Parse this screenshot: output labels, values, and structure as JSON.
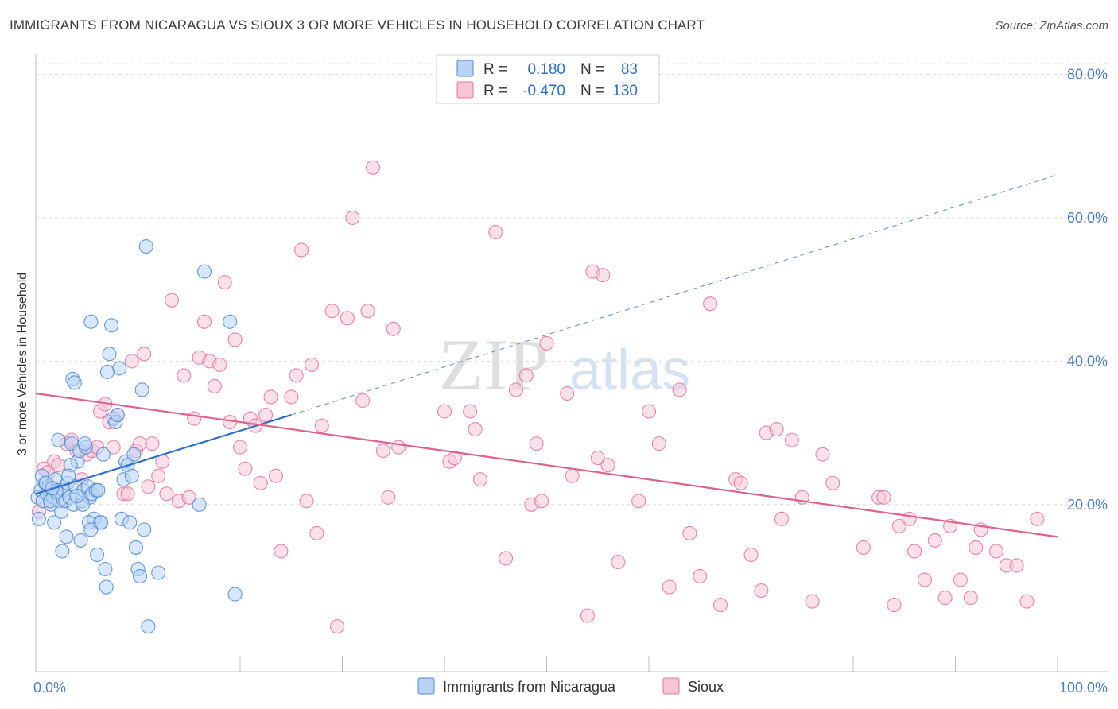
{
  "title": "IMMIGRANTS FROM NICARAGUA VS SIOUX 3 OR MORE VEHICLES IN HOUSEHOLD CORRELATION CHART",
  "source": "Source: ZipAtlas.com",
  "watermark": {
    "zip": "ZIP",
    "atlas": "atlas"
  },
  "colors": {
    "blue": "#4d8ad6",
    "blue_fill": "#b8d3f5",
    "blue_line": "#2f6fcc",
    "pink": "#e8709c",
    "pink_fill": "#f6c6d6",
    "pink_line": "#e0608e",
    "axis_text": "#4a7fcc",
    "grid": "#dcdcdc"
  },
  "legend_box": {
    "rows": [
      {
        "r_label": "R =",
        "r_value": "0.180",
        "n_label": "N =",
        "n_value": "83",
        "series": "blue"
      },
      {
        "r_label": "R =",
        "r_value": "-0.470",
        "n_label": "N =",
        "n_value": "130",
        "series": "pink"
      }
    ]
  },
  "bottom_legend": [
    {
      "label": "Immigrants from Nicaragua",
      "series": "blue"
    },
    {
      "label": "Sioux",
      "series": "pink"
    }
  ],
  "chart_data": {
    "type": "scatter",
    "title": "IMMIGRANTS FROM NICARAGUA VS SIOUX 3 OR MORE VEHICLES IN HOUSEHOLD CORRELATION CHART",
    "xlabel": "",
    "ylabel": "3 or more Vehicles in Household",
    "xlim": [
      0,
      100
    ],
    "ylim": [
      0,
      80
    ],
    "x_tick_labels": [
      {
        "value": 0,
        "label": "0.0%"
      },
      {
        "value": 100,
        "label": "100.0%"
      }
    ],
    "y_ticks": [
      {
        "value": 20,
        "label": "20.0%"
      },
      {
        "value": 40,
        "label": "40.0%"
      },
      {
        "value": 60,
        "label": "60.0%"
      },
      {
        "value": 80,
        "label": "80.0%"
      }
    ],
    "series": [
      {
        "name": "Immigrants from Nicaragua",
        "color": "blue",
        "R": 0.18,
        "N": 83,
        "trend": {
          "x0": 0,
          "y0": 21.5,
          "x1": 25,
          "y1": 32.5,
          "dashed_to_x": 100,
          "dashed_to_y": 66
        },
        "points": [
          [
            0.2,
            21
          ],
          [
            0.5,
            22
          ],
          [
            0.7,
            20.5
          ],
          [
            0.9,
            23
          ],
          [
            1.1,
            21.5
          ],
          [
            1.3,
            22.5
          ],
          [
            1.5,
            20
          ],
          [
            1.7,
            21
          ],
          [
            1.9,
            23.5
          ],
          [
            2.1,
            22
          ],
          [
            2.3,
            20.5
          ],
          [
            2.5,
            19
          ],
          [
            2.7,
            22
          ],
          [
            2.9,
            20.5
          ],
          [
            3.1,
            23
          ],
          [
            3.3,
            21
          ],
          [
            3.5,
            28.5
          ],
          [
            3.7,
            20
          ],
          [
            3.9,
            22.5
          ],
          [
            4.1,
            26
          ],
          [
            4.3,
            27.5
          ],
          [
            4.5,
            20.5
          ],
          [
            4.7,
            22
          ],
          [
            4.9,
            28
          ],
          [
            5.1,
            22.5
          ],
          [
            5.3,
            21
          ],
          [
            5.5,
            21.5
          ],
          [
            5.7,
            18
          ],
          [
            5.9,
            22
          ],
          [
            6.1,
            22
          ],
          [
            6.3,
            17.5
          ],
          [
            0.3,
            18
          ],
          [
            0.6,
            24
          ],
          [
            1.0,
            23
          ],
          [
            1.4,
            20.5
          ],
          [
            1.8,
            17.5
          ],
          [
            2.2,
            29
          ],
          [
            2.6,
            13.5
          ],
          [
            3.0,
            15.5
          ],
          [
            3.4,
            25.5
          ],
          [
            3.6,
            37.5
          ],
          [
            3.8,
            37
          ],
          [
            4.4,
            15
          ],
          [
            4.6,
            20
          ],
          [
            4.8,
            28.5
          ],
          [
            5.2,
            17.5
          ],
          [
            5.4,
            16.5
          ],
          [
            6.0,
            13
          ],
          [
            6.4,
            17.5
          ],
          [
            6.6,
            27
          ],
          [
            6.8,
            11
          ],
          [
            7.0,
            38.5
          ],
          [
            7.2,
            41
          ],
          [
            7.4,
            45
          ],
          [
            7.6,
            32
          ],
          [
            7.8,
            31.5
          ],
          [
            8.0,
            32.5
          ],
          [
            8.2,
            39
          ],
          [
            8.4,
            18
          ],
          [
            8.6,
            23.5
          ],
          [
            8.8,
            26
          ],
          [
            9.0,
            25.5
          ],
          [
            9.2,
            17.5
          ],
          [
            9.4,
            24
          ],
          [
            9.6,
            27
          ],
          [
            9.8,
            14
          ],
          [
            10.0,
            11
          ],
          [
            10.2,
            10
          ],
          [
            10.4,
            36
          ],
          [
            10.6,
            16.5
          ],
          [
            10.8,
            56
          ],
          [
            11.0,
            3
          ],
          [
            12.0,
            10.5
          ],
          [
            16.0,
            20
          ],
          [
            16.5,
            52.5
          ],
          [
            19.0,
            45.5
          ],
          [
            19.5,
            7.5
          ],
          [
            5.4,
            45.5
          ],
          [
            6.9,
            8.5
          ],
          [
            3.2,
            24
          ],
          [
            2.0,
            21.8
          ],
          [
            1.6,
            22.3
          ],
          [
            4.0,
            21.2
          ]
        ]
      },
      {
        "name": "Sioux",
        "color": "pink",
        "R": -0.47,
        "N": 130,
        "trend": {
          "x0": 0,
          "y0": 35.5,
          "x1": 100,
          "y1": 15.5
        },
        "points": [
          [
            0.3,
            19
          ],
          [
            0.8,
            25
          ],
          [
            1.2,
            24.5
          ],
          [
            1.8,
            26
          ],
          [
            2.2,
            25.5
          ],
          [
            3.0,
            28.5
          ],
          [
            3.5,
            29
          ],
          [
            4.0,
            27.5
          ],
          [
            4.5,
            23.5
          ],
          [
            5.0,
            27
          ],
          [
            5.5,
            27.5
          ],
          [
            6.0,
            28
          ],
          [
            6.3,
            33
          ],
          [
            6.8,
            34
          ],
          [
            7.2,
            31.5
          ],
          [
            7.6,
            28
          ],
          [
            8.0,
            32.5
          ],
          [
            8.6,
            21.5
          ],
          [
            9.0,
            21.5
          ],
          [
            9.4,
            40
          ],
          [
            9.8,
            27.5
          ],
          [
            10.2,
            28.5
          ],
          [
            10.6,
            41
          ],
          [
            11.0,
            22.5
          ],
          [
            11.4,
            28.5
          ],
          [
            12.0,
            24
          ],
          [
            12.4,
            26
          ],
          [
            12.8,
            21.5
          ],
          [
            13.3,
            48.5
          ],
          [
            14.0,
            20.5
          ],
          [
            14.5,
            38
          ],
          [
            15.0,
            21
          ],
          [
            15.5,
            32
          ],
          [
            16.0,
            40.5
          ],
          [
            16.5,
            45.5
          ],
          [
            17.0,
            40
          ],
          [
            17.5,
            36.5
          ],
          [
            18.0,
            39.5
          ],
          [
            18.5,
            51
          ],
          [
            19.0,
            31.5
          ],
          [
            19.5,
            43
          ],
          [
            20.0,
            28
          ],
          [
            20.5,
            25
          ],
          [
            21.0,
            32
          ],
          [
            21.5,
            31
          ],
          [
            22.0,
            23
          ],
          [
            22.5,
            32.5
          ],
          [
            23.0,
            35
          ],
          [
            23.5,
            24
          ],
          [
            24.0,
            13.5
          ],
          [
            25.0,
            35
          ],
          [
            25.5,
            38
          ],
          [
            26.0,
            55.5
          ],
          [
            26.5,
            20.5
          ],
          [
            27.0,
            39.5
          ],
          [
            27.5,
            16
          ],
          [
            28.0,
            31
          ],
          [
            29.0,
            47
          ],
          [
            29.5,
            3
          ],
          [
            30.5,
            46
          ],
          [
            31.0,
            60
          ],
          [
            32.0,
            34.5
          ],
          [
            32.5,
            47
          ],
          [
            33.0,
            67
          ],
          [
            34.0,
            27.5
          ],
          [
            34.5,
            21
          ],
          [
            35.0,
            44.5
          ],
          [
            35.5,
            28
          ],
          [
            40.0,
            33
          ],
          [
            40.5,
            26
          ],
          [
            41.0,
            26.5
          ],
          [
            42.5,
            33
          ],
          [
            43.0,
            30.5
          ],
          [
            43.5,
            23.5
          ],
          [
            45.0,
            58
          ],
          [
            46.0,
            12.5
          ],
          [
            47.0,
            36
          ],
          [
            48.0,
            38
          ],
          [
            48.5,
            20
          ],
          [
            49.0,
            28.5
          ],
          [
            49.5,
            20.5
          ],
          [
            50.0,
            42.5
          ],
          [
            52.0,
            35.5
          ],
          [
            52.5,
            24
          ],
          [
            54.0,
            4.5
          ],
          [
            54.5,
            52.5
          ],
          [
            55.0,
            26.5
          ],
          [
            55.5,
            52
          ],
          [
            56.0,
            25.5
          ],
          [
            57.0,
            12
          ],
          [
            59.0,
            20.5
          ],
          [
            60.0,
            33
          ],
          [
            61.0,
            28.5
          ],
          [
            62.0,
            8.5
          ],
          [
            63.0,
            36
          ],
          [
            64.0,
            16
          ],
          [
            65.0,
            10
          ],
          [
            66.0,
            48
          ],
          [
            67.0,
            6
          ],
          [
            68.5,
            23.5
          ],
          [
            69.0,
            23
          ],
          [
            70.0,
            13
          ],
          [
            71.0,
            8
          ],
          [
            71.5,
            30
          ],
          [
            72.5,
            30.5
          ],
          [
            73.0,
            18
          ],
          [
            74.0,
            29
          ],
          [
            75.0,
            21
          ],
          [
            76.0,
            6.5
          ],
          [
            77.0,
            27
          ],
          [
            78.0,
            23
          ],
          [
            81.0,
            14
          ],
          [
            82.5,
            21
          ],
          [
            83.0,
            21
          ],
          [
            84.0,
            6
          ],
          [
            84.5,
            17
          ],
          [
            85.5,
            18
          ],
          [
            86.0,
            13.5
          ],
          [
            87.0,
            9.5
          ],
          [
            88.0,
            15
          ],
          [
            89.0,
            7
          ],
          [
            89.5,
            17
          ],
          [
            90.5,
            9.5
          ],
          [
            91.5,
            7
          ],
          [
            92.0,
            14
          ],
          [
            92.5,
            16.5
          ],
          [
            94.0,
            13.5
          ],
          [
            95.0,
            11.5
          ],
          [
            96.0,
            11.5
          ],
          [
            97.0,
            6.5
          ],
          [
            98.0,
            18
          ]
        ]
      }
    ]
  }
}
